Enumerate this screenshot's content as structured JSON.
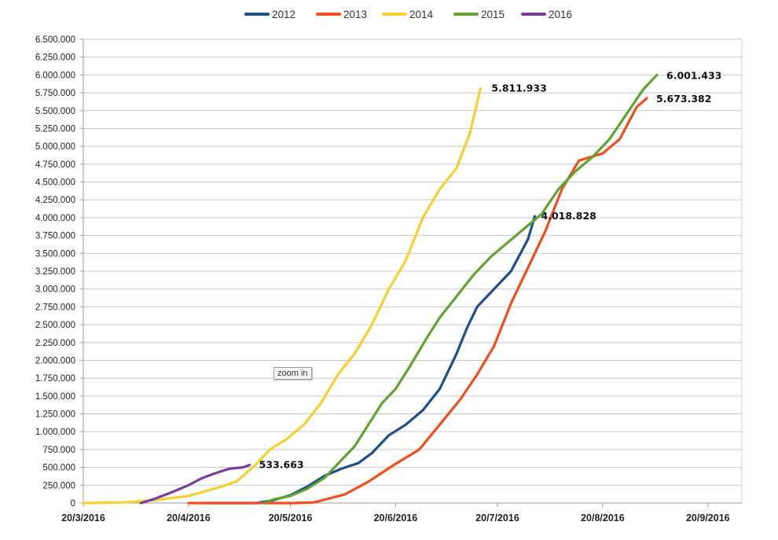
{
  "zoom_button": {
    "label": "zoom in"
  },
  "chart_data": {
    "type": "line",
    "legend_position": "top",
    "grid": "horizontal",
    "ylim": [
      0,
      6500000
    ],
    "yticks": [
      "0",
      "250.000",
      "500.000",
      "750.000",
      "1.000.000",
      "1.250.000",
      "1.500.000",
      "1.750.000",
      "2.000.000",
      "2.250.000",
      "2.500.000",
      "2.750.000",
      "3.000.000",
      "3.250.000",
      "3.500.000",
      "3.750.000",
      "4.000.000",
      "4.250.000",
      "4.500.000",
      "4.750.000",
      "5.000.000",
      "5.250.000",
      "5.500.000",
      "5.750.000",
      "6.000.000",
      "6.250.000",
      "6.500.000"
    ],
    "xlim": [
      "2016-03-20",
      "2016-09-30"
    ],
    "xticks": [
      {
        "date": "2016-03-20",
        "label": "20/3/2016"
      },
      {
        "date": "2016-04-20",
        "label": "20/4/2016"
      },
      {
        "date": "2016-05-20",
        "label": "20/5/2016"
      },
      {
        "date": "2016-06-20",
        "label": "20/6/2016"
      },
      {
        "date": "2016-07-20",
        "label": "20/7/2016"
      },
      {
        "date": "2016-08-20",
        "label": "20/8/2016"
      },
      {
        "date": "2016-09-20",
        "label": "20/9/2016"
      }
    ],
    "series": [
      {
        "name": "2012",
        "color": "#1f4e8c",
        "end_label": "4.018.828",
        "points": [
          [
            "2016-04-25",
            0
          ],
          [
            "2016-05-10",
            0
          ],
          [
            "2016-05-15",
            40000
          ],
          [
            "2016-05-20",
            110000
          ],
          [
            "2016-05-25",
            230000
          ],
          [
            "2016-05-30",
            380000
          ],
          [
            "2016-06-04",
            480000
          ],
          [
            "2016-06-09",
            560000
          ],
          [
            "2016-06-13",
            700000
          ],
          [
            "2016-06-18",
            950000
          ],
          [
            "2016-06-23",
            1100000
          ],
          [
            "2016-06-28",
            1300000
          ],
          [
            "2016-07-03",
            1600000
          ],
          [
            "2016-07-08",
            2100000
          ],
          [
            "2016-07-11",
            2450000
          ],
          [
            "2016-07-14",
            2750000
          ],
          [
            "2016-07-19",
            3000000
          ],
          [
            "2016-07-24",
            3250000
          ],
          [
            "2016-07-29",
            3700000
          ],
          [
            "2016-07-31",
            4018828
          ]
        ]
      },
      {
        "name": "2013",
        "color": "#f04e1e",
        "end_label": "5.673.382",
        "points": [
          [
            "2016-04-20",
            0
          ],
          [
            "2016-05-21",
            0
          ],
          [
            "2016-05-27",
            10000
          ],
          [
            "2016-06-05",
            120000
          ],
          [
            "2016-06-12",
            300000
          ],
          [
            "2016-06-20",
            550000
          ],
          [
            "2016-06-27",
            750000
          ],
          [
            "2016-07-03",
            1100000
          ],
          [
            "2016-07-09",
            1450000
          ],
          [
            "2016-07-14",
            1800000
          ],
          [
            "2016-07-19",
            2200000
          ],
          [
            "2016-07-24",
            2800000
          ],
          [
            "2016-07-29",
            3300000
          ],
          [
            "2016-08-03",
            3800000
          ],
          [
            "2016-08-08",
            4400000
          ],
          [
            "2016-08-13",
            4800000
          ],
          [
            "2016-08-20",
            4900000
          ],
          [
            "2016-08-25",
            5100000
          ],
          [
            "2016-08-30",
            5550000
          ],
          [
            "2016-09-02",
            5673382
          ]
        ]
      },
      {
        "name": "2014",
        "color": "#f7cf2f",
        "end_label": "5.811.933",
        "points": [
          [
            "2016-03-20",
            0
          ],
          [
            "2016-04-01",
            10000
          ],
          [
            "2016-04-10",
            40000
          ],
          [
            "2016-04-20",
            100000
          ],
          [
            "2016-04-29",
            220000
          ],
          [
            "2016-05-04",
            300000
          ],
          [
            "2016-05-09",
            500000
          ],
          [
            "2016-05-14",
            750000
          ],
          [
            "2016-05-19",
            900000
          ],
          [
            "2016-05-24",
            1100000
          ],
          [
            "2016-05-29",
            1400000
          ],
          [
            "2016-06-03",
            1800000
          ],
          [
            "2016-06-08",
            2100000
          ],
          [
            "2016-06-13",
            2500000
          ],
          [
            "2016-06-18",
            3000000
          ],
          [
            "2016-06-23",
            3400000
          ],
          [
            "2016-06-28",
            4000000
          ],
          [
            "2016-07-03",
            4400000
          ],
          [
            "2016-07-08",
            4700000
          ],
          [
            "2016-07-12",
            5200000
          ],
          [
            "2016-07-15",
            5811933
          ]
        ]
      },
      {
        "name": "2015",
        "color": "#5fa331",
        "end_label": "6.001.433",
        "points": [
          [
            "2016-05-12",
            0
          ],
          [
            "2016-05-15",
            50000
          ],
          [
            "2016-05-20",
            100000
          ],
          [
            "2016-05-25",
            200000
          ],
          [
            "2016-05-30",
            350000
          ],
          [
            "2016-06-04",
            600000
          ],
          [
            "2016-06-08",
            800000
          ],
          [
            "2016-06-12",
            1100000
          ],
          [
            "2016-06-16",
            1400000
          ],
          [
            "2016-06-20",
            1600000
          ],
          [
            "2016-06-24",
            1900000
          ],
          [
            "2016-06-29",
            2300000
          ],
          [
            "2016-07-03",
            2600000
          ],
          [
            "2016-07-08",
            2900000
          ],
          [
            "2016-07-13",
            3200000
          ],
          [
            "2016-07-18",
            3450000
          ],
          [
            "2016-07-23",
            3650000
          ],
          [
            "2016-07-28",
            3850000
          ],
          [
            "2016-08-02",
            4050000
          ],
          [
            "2016-08-07",
            4400000
          ],
          [
            "2016-08-12",
            4650000
          ],
          [
            "2016-08-17",
            4850000
          ],
          [
            "2016-08-22",
            5100000
          ],
          [
            "2016-08-27",
            5450000
          ],
          [
            "2016-09-01",
            5800000
          ],
          [
            "2016-09-05",
            6001433
          ]
        ]
      },
      {
        "name": "2016",
        "color": "#7c3a9f",
        "end_label": "533.663",
        "points": [
          [
            "2016-04-06",
            0
          ],
          [
            "2016-04-10",
            60000
          ],
          [
            "2016-04-15",
            150000
          ],
          [
            "2016-04-20",
            250000
          ],
          [
            "2016-04-24",
            350000
          ],
          [
            "2016-04-28",
            420000
          ],
          [
            "2016-05-02",
            480000
          ],
          [
            "2016-05-06",
            500000
          ],
          [
            "2016-05-08",
            533663
          ]
        ]
      }
    ]
  }
}
